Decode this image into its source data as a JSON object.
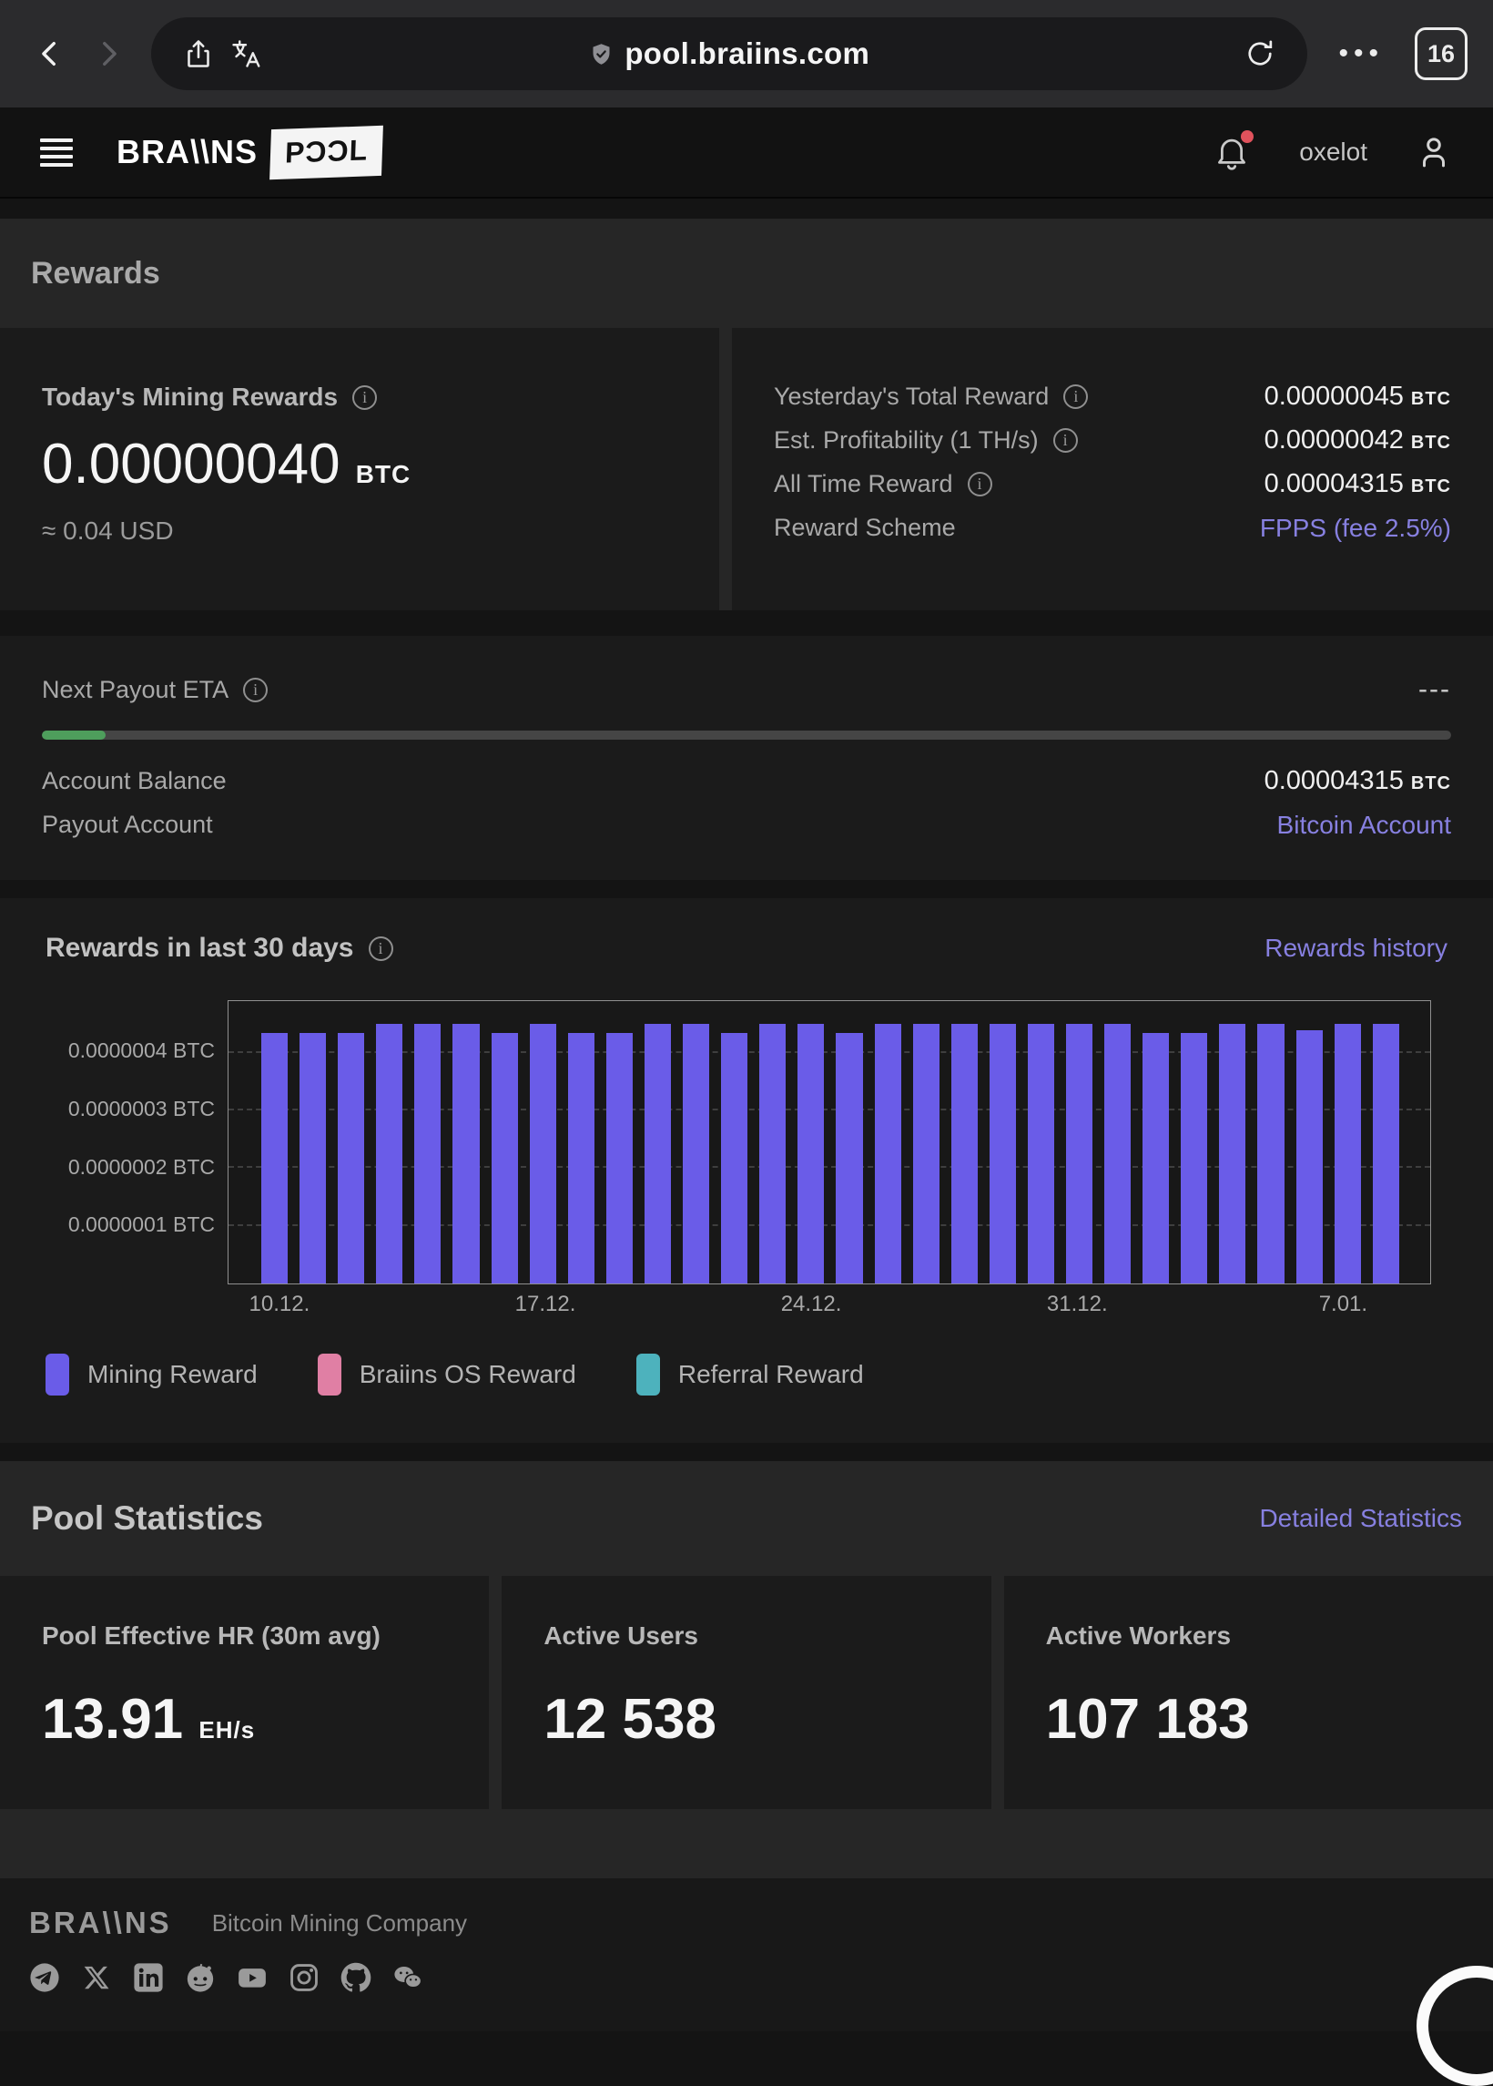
{
  "browser": {
    "url": "pool.braiins.com",
    "tab_count": "16",
    "menu_dots": "•••"
  },
  "header": {
    "brand": "BRA\\\\NS",
    "brand_suffix": "PƆƆL",
    "username": "oxelot"
  },
  "rewards": {
    "section_title": "Rewards",
    "today": {
      "label": "Today's Mining Rewards",
      "value": "0.00000040",
      "unit": "BTC",
      "usd": "≈ 0.04 USD"
    },
    "rows": [
      {
        "label": "Yesterday's Total Reward",
        "value": "0.00000045",
        "unit": "BTC"
      },
      {
        "label": "Est. Profitability (1 TH/s)",
        "value": "0.00000042",
        "unit": "BTC"
      },
      {
        "label": "All Time Reward",
        "value": "0.00004315",
        "unit": "BTC"
      },
      {
        "label": "Reward Scheme",
        "link": "FPPS (fee 2.5%)"
      }
    ]
  },
  "payout": {
    "eta_label": "Next Payout ETA",
    "eta_value": "---",
    "progress_pct": 4.5,
    "progress_color": "#4e9e5c",
    "balance_label": "Account Balance",
    "balance_value": "0.00004315",
    "balance_unit": "BTC",
    "account_label": "Payout Account",
    "account_link": "Bitcoin Account"
  },
  "chart": {
    "title": "Rewards in last 30 days",
    "history_link": "Rewards history",
    "legend": [
      {
        "label": "Mining Reward",
        "color": "#6a5ce8"
      },
      {
        "label": "Braiins OS Reward",
        "color": "#e07fa4"
      },
      {
        "label": "Referral Reward",
        "color": "#4db2bd"
      }
    ],
    "chart_data": {
      "type": "bar",
      "unit": "BTC",
      "bar_color": "#6a5ce8",
      "ylim": [
        0,
        4.9e-07
      ],
      "yticks": [
        1e-07,
        2e-07,
        3e-07,
        4e-07
      ],
      "ytick_labels": [
        "0.0000001 BTC",
        "0.0000002 BTC",
        "0.0000003 BTC",
        "0.0000004 BTC"
      ],
      "x_tick_labels": [
        "10.12.",
        "17.12.",
        "24.12.",
        "31.12.",
        "7.01."
      ],
      "x_tick_positions": [
        0,
        7,
        14,
        21,
        28
      ],
      "values": [
        4.35e-07,
        4.35e-07,
        4.35e-07,
        4.5e-07,
        4.5e-07,
        4.5e-07,
        4.35e-07,
        4.5e-07,
        4.35e-07,
        4.35e-07,
        4.5e-07,
        4.5e-07,
        4.35e-07,
        4.5e-07,
        4.5e-07,
        4.35e-07,
        4.5e-07,
        4.5e-07,
        4.5e-07,
        4.5e-07,
        4.5e-07,
        4.5e-07,
        4.5e-07,
        4.35e-07,
        4.35e-07,
        4.5e-07,
        4.5e-07,
        4.4e-07,
        4.5e-07,
        4.5e-07
      ]
    }
  },
  "pool_stats": {
    "title": "Pool Statistics",
    "link": "Detailed Statistics",
    "cards": [
      {
        "label": "Pool Effective HR (30m avg)",
        "value": "13.91",
        "unit": "EH/s"
      },
      {
        "label": "Active Users",
        "value": "12 538",
        "unit": ""
      },
      {
        "label": "Active Workers",
        "value": "107 183",
        "unit": ""
      }
    ]
  },
  "footer": {
    "brand": "BRA\\\\NS",
    "tagline": "Bitcoin Mining Company",
    "socials": [
      "telegram",
      "x",
      "linkedin",
      "reddit",
      "youtube",
      "instagram",
      "github",
      "wechat"
    ]
  }
}
